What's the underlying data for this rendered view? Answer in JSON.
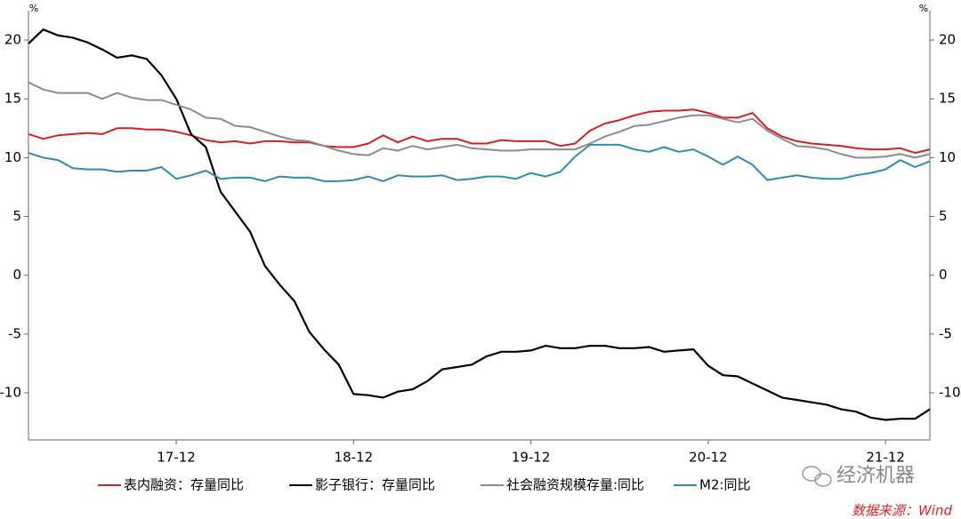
{
  "chart_data": {
    "type": "line",
    "y_label": "%",
    "y2_label": "%",
    "categories": [
      null,
      null,
      null,
      null,
      null,
      null,
      null,
      null,
      null,
      null,
      "17-12",
      null,
      null,
      null,
      null,
      null,
      null,
      null,
      null,
      null,
      null,
      null,
      "18-12",
      null,
      null,
      null,
      null,
      null,
      null,
      null,
      null,
      null,
      null,
      null,
      "19-12",
      null,
      null,
      null,
      null,
      null,
      null,
      null,
      null,
      null,
      null,
      null,
      "20-12",
      null,
      null,
      null,
      null,
      null,
      null,
      null,
      null,
      null,
      null,
      null,
      "21-12",
      null,
      null,
      null
    ],
    "series": [
      {
        "name": "表内融资：存量同比",
        "color": "#d42020",
        "values": [
          12.0,
          11.6,
          11.9,
          12.0,
          12.1,
          12.0,
          12.5,
          12.5,
          12.4,
          12.4,
          12.2,
          11.9,
          11.5,
          11.3,
          11.4,
          11.2,
          11.4,
          11.4,
          11.3,
          11.3,
          11.0,
          10.9,
          10.9,
          11.2,
          11.9,
          11.3,
          11.8,
          11.4,
          11.6,
          11.6,
          11.2,
          11.2,
          11.5,
          11.4,
          11.4,
          11.4,
          11.0,
          11.2,
          12.3,
          12.9,
          13.2,
          13.6,
          13.9,
          14.0,
          14.0,
          14.1,
          13.8,
          13.4,
          13.4,
          13.8,
          12.5,
          11.8,
          11.4,
          11.2,
          11.1,
          11.0,
          10.8,
          10.7,
          10.7,
          10.8,
          10.4,
          10.7
        ]
      },
      {
        "name": "影子银行：存量同比",
        "color": "#000000",
        "values": [
          19.7,
          20.9,
          20.4,
          20.2,
          19.8,
          19.2,
          18.5,
          18.7,
          18.4,
          17.0,
          15.0,
          12.0,
          10.9,
          7.1,
          5.4,
          3.7,
          0.8,
          -0.8,
          -2.2,
          -4.8,
          -6.3,
          -7.6,
          -10.1,
          -10.2,
          -10.4,
          -9.9,
          -9.7,
          -9.0,
          -8.0,
          -7.8,
          -7.6,
          -6.9,
          -6.5,
          -6.5,
          -6.4,
          -6.0,
          -6.2,
          -6.2,
          -6.0,
          -6.0,
          -6.2,
          -6.2,
          -6.1,
          -6.5,
          -6.4,
          -6.3,
          -7.7,
          -8.5,
          -8.6,
          -9.2,
          -9.8,
          -10.4,
          -10.6,
          -10.8,
          -11.0,
          -11.4,
          -11.6,
          -12.1,
          -12.3,
          -12.2,
          -12.2,
          -11.4
        ]
      },
      {
        "name": "社会融资规模存量:同比",
        "color": "#8c8c8c",
        "values": [
          16.4,
          15.8,
          15.5,
          15.5,
          15.5,
          15.0,
          15.5,
          15.1,
          14.9,
          14.9,
          14.5,
          14.1,
          13.4,
          13.3,
          12.7,
          12.6,
          12.2,
          11.8,
          11.5,
          11.4,
          11.0,
          10.6,
          10.3,
          10.2,
          10.8,
          10.6,
          11.0,
          10.7,
          10.9,
          11.1,
          10.8,
          10.7,
          10.6,
          10.6,
          10.7,
          10.7,
          10.7,
          10.7,
          11.2,
          11.8,
          12.2,
          12.7,
          12.8,
          13.1,
          13.4,
          13.6,
          13.6,
          13.3,
          13.0,
          13.3,
          12.3,
          11.6,
          11.0,
          10.9,
          10.7,
          10.3,
          10.0,
          10.0,
          10.1,
          10.3,
          10.0,
          10.3
        ]
      },
      {
        "name": "M2:同比",
        "color": "#2e8ab8",
        "values": [
          10.4,
          10.0,
          9.8,
          9.1,
          9.0,
          9.0,
          8.8,
          8.9,
          8.9,
          9.2,
          8.2,
          8.5,
          8.9,
          8.2,
          8.3,
          8.3,
          8.0,
          8.4,
          8.3,
          8.3,
          8.0,
          8.0,
          8.1,
          8.4,
          8.0,
          8.5,
          8.4,
          8.4,
          8.5,
          8.1,
          8.2,
          8.4,
          8.4,
          8.2,
          8.7,
          8.4,
          8.8,
          10.1,
          11.1,
          11.1,
          11.1,
          10.7,
          10.5,
          10.9,
          10.5,
          10.7,
          10.1,
          9.4,
          10.1,
          9.4,
          8.1,
          8.3,
          8.5,
          8.3,
          8.2,
          8.2,
          8.5,
          8.7,
          9.0,
          9.8,
          9.2,
          9.7
        ]
      }
    ],
    "ylim": [
      -14,
      22.5
    ],
    "yticks": [
      -10,
      -5,
      0,
      5,
      10,
      15,
      20
    ],
    "y2lim": [
      -14,
      22.5
    ],
    "y2ticks": [
      -10,
      -5,
      0,
      5,
      10,
      15,
      20
    ],
    "legend": "bottom",
    "watermark": "经济机器",
    "source": "数据来源：Wind"
  }
}
